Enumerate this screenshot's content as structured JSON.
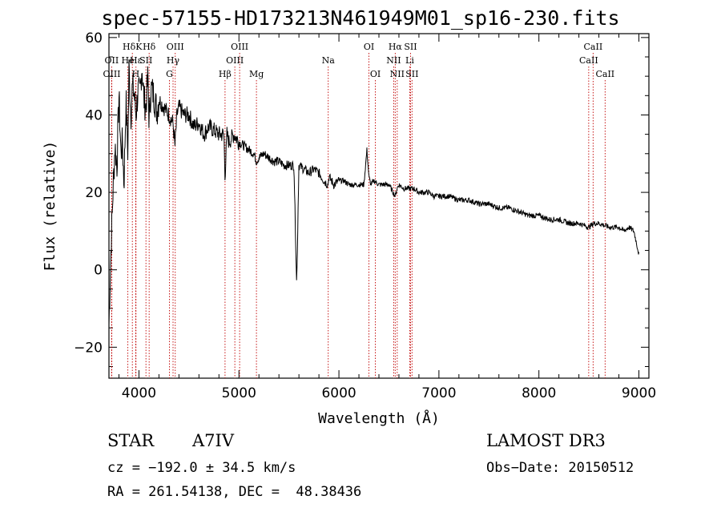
{
  "chart_data": {
    "type": "line",
    "title": "spec-57155-HD173213N461949M01_sp16-230.fits",
    "xlabel": "Wavelength (Å)",
    "ylabel": "Flux (relative)",
    "xlim": [
      3700,
      9100
    ],
    "ylim": [
      -28,
      61
    ],
    "xticks": [
      4000,
      5000,
      6000,
      7000,
      8000,
      9000
    ],
    "yticks": [
      -20,
      0,
      20,
      40,
      60
    ],
    "spectrum": {
      "name": "flux",
      "x": [
        3700,
        3720,
        3740,
        3760,
        3780,
        3800,
        3820,
        3835,
        3850,
        3870,
        3889,
        3900,
        3920,
        3933,
        3950,
        3970,
        3990,
        4010,
        4030,
        4050,
        4070,
        4090,
        4102,
        4120,
        4150,
        4180,
        4200,
        4250,
        4300,
        4340,
        4360,
        4380,
        4400,
        4450,
        4500,
        4550,
        4600,
        4650,
        4700,
        4750,
        4800,
        4850,
        4861,
        4880,
        4900,
        4950,
        5000,
        5050,
        5100,
        5150,
        5175,
        5200,
        5250,
        5300,
        5350,
        5400,
        5450,
        5500,
        5550,
        5577,
        5600,
        5650,
        5700,
        5750,
        5800,
        5850,
        5890,
        5900,
        5950,
        6000,
        6050,
        6100,
        6150,
        6200,
        6250,
        6280,
        6300,
        6320,
        6350,
        6400,
        6450,
        6500,
        6563,
        6580,
        6600,
        6650,
        6700,
        6750,
        6800,
        6850,
        6900,
        6950,
        7000,
        7100,
        7200,
        7300,
        7400,
        7500,
        7600,
        7700,
        7800,
        7900,
        8000,
        8100,
        8200,
        8300,
        8400,
        8500,
        8550,
        8600,
        8700,
        8800,
        8850,
        8900,
        8950,
        9000
      ],
      "y": [
        -14,
        5,
        20,
        32,
        27,
        45,
        30,
        33,
        22,
        44,
        30,
        52,
        40,
        47,
        46,
        40,
        46,
        45,
        53,
        44,
        42,
        50,
        38,
        47,
        45,
        41,
        44,
        42,
        40,
        38,
        32,
        40,
        42,
        40,
        40,
        37,
        38,
        35,
        37,
        36,
        35,
        35,
        24,
        35,
        33,
        35,
        33,
        32,
        31,
        30,
        28,
        29,
        30,
        29,
        28,
        28,
        27,
        27,
        27,
        -4,
        27,
        26,
        25,
        26,
        25,
        23,
        22,
        24,
        22,
        23,
        23,
        22,
        22,
        22,
        22,
        31,
        24,
        22,
        23,
        22,
        22,
        22,
        19,
        21,
        22,
        21,
        21,
        21,
        20,
        20,
        20,
        19,
        19,
        19,
        18,
        18,
        17,
        17,
        16,
        16,
        15,
        14,
        14,
        13,
        13,
        12,
        12,
        11,
        12,
        12,
        11,
        11,
        10,
        11,
        10,
        4
      ]
    },
    "spectral_lines": [
      {
        "label": "HδK",
        "wavelength": 3934,
        "row": 1
      },
      {
        "label": "OII",
        "wavelength": 3727,
        "row": 2
      },
      {
        "label": "OIII",
        "wavelength": 3728,
        "row": 3
      },
      {
        "label": "He",
        "wavelength": 3889,
        "row": 2
      },
      {
        "label": "Hε",
        "wavelength": 3970,
        "row": 2
      },
      {
        "label": "H",
        "wavelength": 3968,
        "row": 3
      },
      {
        "label": "SII",
        "wavelength": 4070,
        "row": 2
      },
      {
        "label": "Hδ",
        "wavelength": 4102,
        "row": 1
      },
      {
        "label": "OIII",
        "wavelength": 4363,
        "row": 1
      },
      {
        "label": "Hγ",
        "wavelength": 4341,
        "row": 2
      },
      {
        "label": "G",
        "wavelength": 4305,
        "row": 3
      },
      {
        "label": "Hβ",
        "wavelength": 4861,
        "row": 3
      },
      {
        "label": "OIII",
        "wavelength": 5007,
        "row": 1
      },
      {
        "label": "OIII",
        "wavelength": 4959,
        "row": 2
      },
      {
        "label": "Mg",
        "wavelength": 5175,
        "row": 3
      },
      {
        "label": "Na",
        "wavelength": 5893,
        "row": 2
      },
      {
        "label": "OI",
        "wavelength": 6300,
        "row": 1
      },
      {
        "label": "OI",
        "wavelength": 6364,
        "row": 3
      },
      {
        "label": "Hα",
        "wavelength": 6563,
        "row": 1
      },
      {
        "label": "SII",
        "wavelength": 6716,
        "row": 1
      },
      {
        "label": "NII",
        "wavelength": 6548,
        "row": 2
      },
      {
        "label": "Li",
        "wavelength": 6708,
        "row": 2
      },
      {
        "label": "NII",
        "wavelength": 6583,
        "row": 3
      },
      {
        "label": "SII",
        "wavelength": 6731,
        "row": 3
      },
      {
        "label": "CaII",
        "wavelength": 8542,
        "row": 1
      },
      {
        "label": "CaII",
        "wavelength": 8498,
        "row": 2
      },
      {
        "label": "CaII",
        "wavelength": 8662,
        "row": 3
      }
    ]
  },
  "info": {
    "object_type": "STAR",
    "subclass": "A7IV",
    "survey": "LAMOST DR3",
    "redshift": "cz = −192.0 ± 34.5 km/s",
    "obs_date": "Obs−Date: 20150512",
    "coordinates": "RA = 261.54138, DEC =  48.38436"
  }
}
